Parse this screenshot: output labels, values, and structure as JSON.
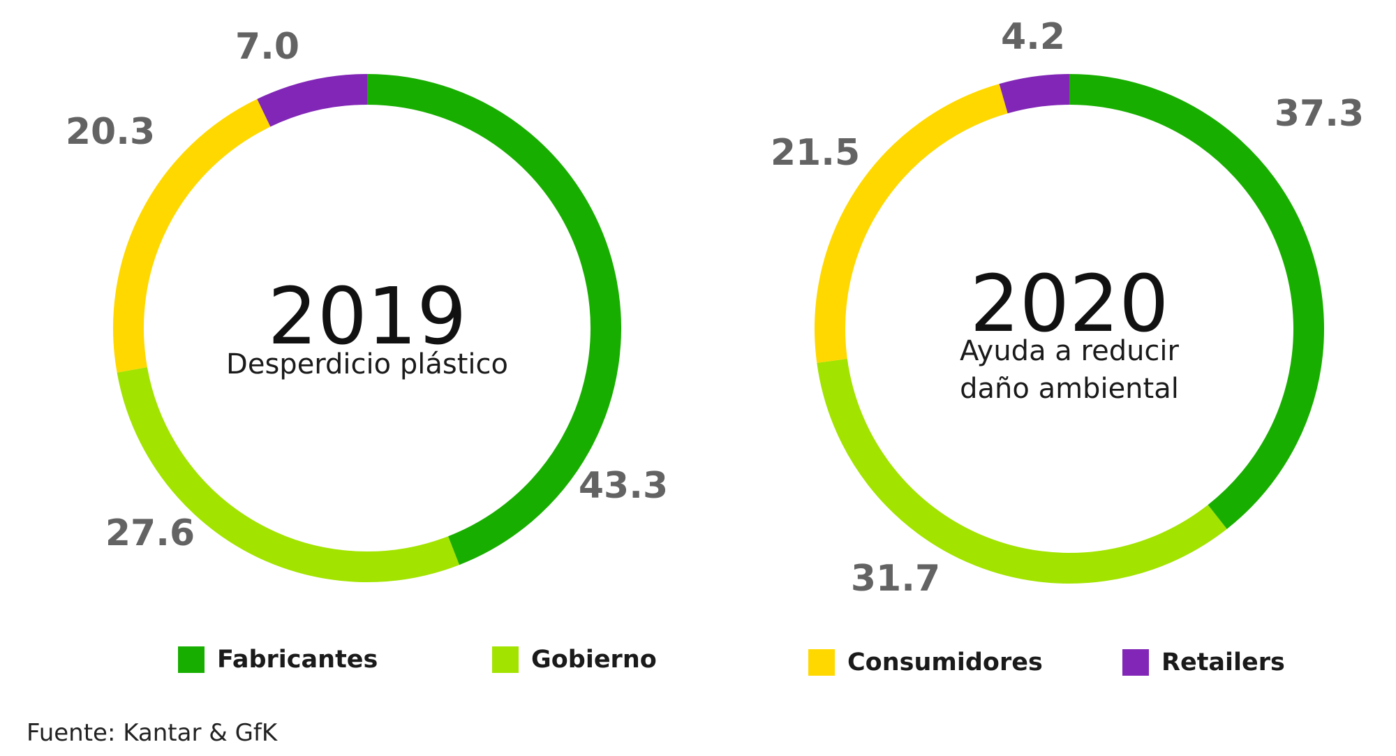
{
  "colors": {
    "Fabricantes": "#18ae00",
    "Gobierno": "#a2e300",
    "Consumidores": "#ffd800",
    "Retailers": "#8126b6"
  },
  "legend": [
    {
      "label": "Fabricantes"
    },
    {
      "label": "Gobierno"
    },
    {
      "label": "Consumidores"
    },
    {
      "label": "Retailers"
    }
  ],
  "source": "Fuente: Kantar & GfK",
  "chart_data": [
    {
      "type": "pie",
      "variant": "donut",
      "title": "2019",
      "subtitle": [
        "Desperdicio plástico"
      ],
      "categories": [
        "Fabricantes",
        "Gobierno",
        "Consumidores",
        "Retailers"
      ],
      "values": [
        43.3,
        27.6,
        20.3,
        7.0
      ],
      "value_labels": [
        "43.3",
        "27.6",
        "20.3",
        "7.0"
      ]
    },
    {
      "type": "pie",
      "variant": "donut",
      "title": "2020",
      "subtitle": [
        "Ayuda a reducir",
        "daño ambiental"
      ],
      "categories": [
        "Fabricantes",
        "Gobierno",
        "Consumidores",
        "Retailers"
      ],
      "values": [
        37.3,
        31.7,
        21.5,
        4.2
      ],
      "value_labels": [
        "37.3",
        "31.7",
        "21.5",
        "4.2"
      ]
    }
  ]
}
